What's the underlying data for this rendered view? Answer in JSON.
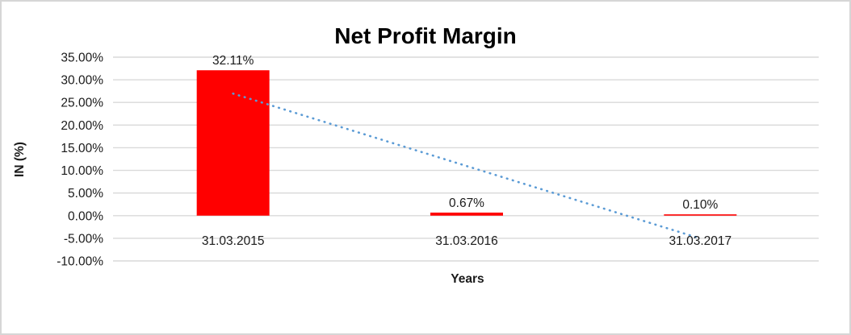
{
  "chart_data": {
    "type": "bar",
    "title": "Net Profit Margin",
    "xlabel": "Years",
    "ylabel": "IN (%)",
    "categories": [
      "31.03.2015",
      "31.03.2016",
      "31.03.2017"
    ],
    "values": [
      32.11,
      0.67,
      0.1
    ],
    "data_labels": [
      "32.11%",
      "0.67%",
      "0.10%"
    ],
    "y_ticks": [
      35,
      30,
      25,
      20,
      15,
      10,
      5,
      0,
      -5,
      -10
    ],
    "y_tick_labels": [
      "35.00%",
      "30.00%",
      "25.00%",
      "20.00%",
      "15.00%",
      "10.00%",
      "5.00%",
      "0.00%",
      "-5.00%",
      "-10.00%"
    ],
    "ylim": [
      -10,
      35
    ],
    "grid": true,
    "legend_position": "none",
    "bar_color": "#ff0000",
    "gridline_color": "#d9d9d9",
    "text_color": "#1a1a1a",
    "trendline": {
      "type": "linear",
      "style": "dotted",
      "color": "#5b9bd5",
      "start_value": 26.96,
      "end_value": -5.05
    }
  }
}
